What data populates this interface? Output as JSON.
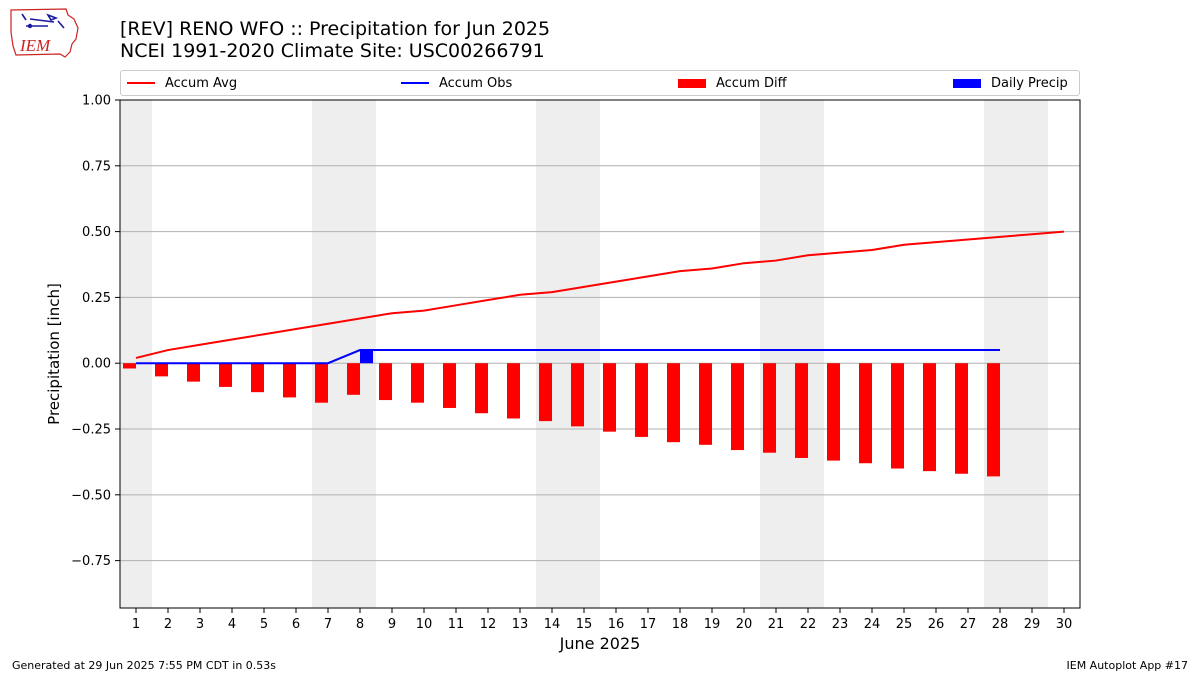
{
  "header": {
    "logo_text": "IEM",
    "title_line1": "[REV] RENO WFO :: Precipitation for Jun 2025",
    "title_line2": "NCEI 1991-2020 Climate Site: USC00266791"
  },
  "legend": {
    "accum_avg": "Accum Avg",
    "accum_obs": "Accum Obs",
    "accum_diff": "Accum Diff",
    "daily_precip": "Daily Precip"
  },
  "footer": {
    "generated": "Generated at 29 Jun 2025 7:55 PM CDT in 0.53s",
    "app": "IEM Autoplot App #17"
  },
  "colors": {
    "avg": "#ff0000",
    "obs": "#0000ff",
    "diff": "#ff0000",
    "daily": "#0000ff",
    "weekend_shade": "#eeeeee",
    "grid": "#b0b0b0"
  },
  "chart_data": {
    "type": "bar",
    "xlabel": "June 2025",
    "ylabel": "Precipitation [inch]",
    "xlim": [
      0.5,
      30.5
    ],
    "ylim": [
      -0.93,
      1.0
    ],
    "yticks": [
      -0.75,
      -0.5,
      -0.25,
      0.0,
      0.25,
      0.5,
      0.75,
      1.0
    ],
    "ytick_labels": [
      "−0.75",
      "−0.50",
      "−0.25",
      "0.00",
      "0.25",
      "0.50",
      "0.75",
      "1.00"
    ],
    "days": [
      1,
      2,
      3,
      4,
      5,
      6,
      7,
      8,
      9,
      10,
      11,
      12,
      13,
      14,
      15,
      16,
      17,
      18,
      19,
      20,
      21,
      22,
      23,
      24,
      25,
      26,
      27,
      28,
      29,
      30
    ],
    "grid": "horizontal",
    "legend_position": "top",
    "weekends": [
      [
        0.5,
        1.5
      ],
      [
        6.5,
        8.5
      ],
      [
        13.5,
        15.5
      ],
      [
        20.5,
        22.5
      ],
      [
        27.5,
        29.5
      ]
    ],
    "series": [
      {
        "name": "Accum Avg",
        "type": "line",
        "days": [
          1,
          2,
          3,
          4,
          5,
          6,
          7,
          8,
          9,
          10,
          11,
          12,
          13,
          14,
          15,
          16,
          17,
          18,
          19,
          20,
          21,
          22,
          23,
          24,
          25,
          26,
          27,
          28,
          29,
          30
        ],
        "values": [
          0.02,
          0.05,
          0.07,
          0.09,
          0.11,
          0.13,
          0.15,
          0.17,
          0.19,
          0.2,
          0.22,
          0.24,
          0.26,
          0.27,
          0.29,
          0.31,
          0.33,
          0.35,
          0.36,
          0.38,
          0.39,
          0.41,
          0.42,
          0.43,
          0.45,
          0.46,
          0.47,
          0.48,
          0.49,
          0.5
        ]
      },
      {
        "name": "Accum Obs",
        "type": "line",
        "days": [
          1,
          2,
          3,
          4,
          5,
          6,
          7,
          8,
          9,
          10,
          11,
          12,
          13,
          14,
          15,
          16,
          17,
          18,
          19,
          20,
          21,
          22,
          23,
          24,
          25,
          26,
          27,
          28
        ],
        "values": [
          0,
          0,
          0,
          0,
          0,
          0,
          0,
          0.05,
          0.05,
          0.05,
          0.05,
          0.05,
          0.05,
          0.05,
          0.05,
          0.05,
          0.05,
          0.05,
          0.05,
          0.05,
          0.05,
          0.05,
          0.05,
          0.05,
          0.05,
          0.05,
          0.05,
          0.05
        ]
      },
      {
        "name": "Accum Diff",
        "type": "bar",
        "days": [
          1,
          2,
          3,
          4,
          5,
          6,
          7,
          8,
          9,
          10,
          11,
          12,
          13,
          14,
          15,
          16,
          17,
          18,
          19,
          20,
          21,
          22,
          23,
          24,
          25,
          26,
          27,
          28
        ],
        "values": [
          -0.02,
          -0.05,
          -0.07,
          -0.09,
          -0.11,
          -0.13,
          -0.15,
          -0.12,
          -0.14,
          -0.15,
          -0.17,
          -0.19,
          -0.21,
          -0.22,
          -0.24,
          -0.26,
          -0.28,
          -0.3,
          -0.31,
          -0.33,
          -0.34,
          -0.36,
          -0.37,
          -0.38,
          -0.4,
          -0.41,
          -0.42,
          -0.43
        ]
      },
      {
        "name": "Daily Precip",
        "type": "bar",
        "days": [
          8
        ],
        "values": [
          0.05
        ]
      }
    ]
  }
}
